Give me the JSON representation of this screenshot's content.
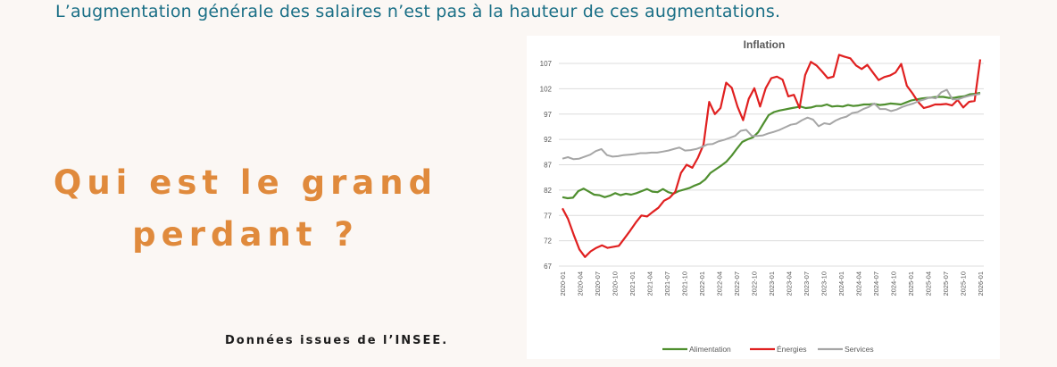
{
  "headline": "L’augmentation générale des salaires n’est pas à la hauteur de ces augmentations.",
  "question_line1": "Qui est le grand",
  "question_line2": "perdant ?",
  "source_note": "Données issues de l’INSEE.",
  "chart_data": {
    "type": "line",
    "title": "Inflation",
    "xlabel": "",
    "ylabel": "",
    "ylim": [
      67,
      110
    ],
    "yticks": [
      67,
      72,
      77,
      82,
      87,
      92,
      97,
      102,
      107
    ],
    "grid": true,
    "legend_position": "bottom",
    "x_tick_labels": [
      "2020-01",
      "2020-04",
      "2020-07",
      "2020-10",
      "2021-01",
      "2021-04",
      "2021-07",
      "2021-10",
      "2022-01",
      "2022-04",
      "2022-07",
      "2022-10",
      "2023-01",
      "2023-04",
      "2023-07",
      "2023-10",
      "2024-01",
      "2024-04",
      "2024-07",
      "2024-10",
      "2025-01",
      "2025-04",
      "2025-07",
      "2025-10",
      "2026-01"
    ],
    "series": [
      {
        "name": "Alimentation",
        "color": "#4f8f2f",
        "values": [
          80.6,
          80.4,
          80.5,
          81.8,
          82.3,
          81.7,
          81.1,
          81.0,
          80.6,
          80.9,
          81.4,
          81.0,
          81.3,
          81.1,
          81.4,
          81.8,
          82.2,
          81.7,
          81.6,
          82.2,
          81.6,
          81.3,
          81.8,
          82.1,
          82.4,
          82.9,
          83.3,
          84.1,
          85.4,
          86.1,
          86.8,
          87.6,
          88.8,
          90.2,
          91.5,
          92.0,
          92.4,
          93.4,
          95.1,
          96.8,
          97.4,
          97.7,
          97.9,
          98.1,
          98.3,
          98.5,
          98.2,
          98.3,
          98.6,
          98.6,
          98.9,
          98.5,
          98.6,
          98.5,
          98.8,
          98.6,
          98.7,
          98.9,
          98.9,
          99.0,
          98.8,
          98.9,
          99.1,
          99.0,
          98.9,
          99.3,
          99.7,
          99.9,
          100.1,
          100.2,
          100.3,
          100.4,
          100.4,
          100.2,
          100.2,
          100.4,
          100.5,
          100.9,
          101.0,
          101.2
        ]
      },
      {
        "name": "Énergies",
        "color": "#e02020",
        "values": [
          78.4,
          76.3,
          73.2,
          70.3,
          68.8,
          69.9,
          70.6,
          71.1,
          70.6,
          70.8,
          71.0,
          72.5,
          74.0,
          75.6,
          77.0,
          76.8,
          77.7,
          78.5,
          79.9,
          80.5,
          81.7,
          85.4,
          87.0,
          86.4,
          88.4,
          91.0,
          99.4,
          97.0,
          98.2,
          103.2,
          102.2,
          98.5,
          95.8,
          100.0,
          102.1,
          98.5,
          102.1,
          104.1,
          104.4,
          103.8,
          100.5,
          100.8,
          98.2,
          104.7,
          107.3,
          106.6,
          105.4,
          104.1,
          104.4,
          108.7,
          108.3,
          108.0,
          106.6,
          105.9,
          106.7,
          105.2,
          103.7,
          104.3,
          104.6,
          105.2,
          106.9,
          102.6,
          101.1,
          99.4,
          98.2,
          98.5,
          98.9,
          98.9,
          99.0,
          98.7,
          99.8,
          98.3,
          99.4,
          99.6,
          107.8
        ]
      },
      {
        "name": "Services",
        "color": "#a6a6a6",
        "values": [
          88.2,
          88.5,
          88.1,
          88.2,
          88.6,
          89.0,
          89.7,
          90.1,
          88.9,
          88.6,
          88.7,
          88.9,
          89.0,
          89.1,
          89.3,
          89.3,
          89.4,
          89.4,
          89.6,
          89.8,
          90.1,
          90.4,
          89.8,
          89.9,
          90.1,
          90.5,
          91.0,
          91.1,
          91.6,
          91.9,
          92.3,
          92.7,
          93.7,
          93.9,
          92.7,
          92.7,
          92.8,
          93.2,
          93.5,
          93.9,
          94.4,
          94.9,
          95.1,
          95.8,
          96.3,
          95.9,
          94.6,
          95.2,
          95.0,
          95.7,
          96.2,
          96.5,
          97.2,
          97.4,
          98.0,
          98.4,
          99.1,
          98.0,
          98.0,
          97.6,
          97.9,
          98.4,
          98.8,
          99.1,
          99.6,
          99.9,
          100.3,
          100.1,
          101.3,
          101.8,
          99.9,
          99.9,
          100.3,
          100.6,
          100.8,
          101.0
        ]
      }
    ]
  }
}
